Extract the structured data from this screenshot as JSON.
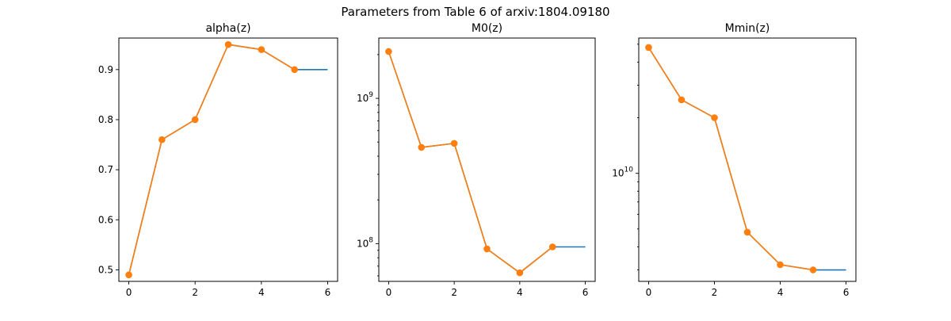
{
  "figure": {
    "title": "Parameters from Table 6 of arxiv:1804.09180"
  },
  "colors": {
    "line_series": "#1f77b4",
    "marker_series": "#ff7f0e"
  },
  "chart_data": [
    {
      "type": "line",
      "title": "alpha(z)",
      "xlabel": "",
      "ylabel": "",
      "yscale": "linear",
      "xlim": [
        -0.3,
        6.3
      ],
      "ylim": [
        0.477,
        0.963
      ],
      "xticks": [
        0,
        2,
        4,
        6
      ],
      "xtick_labels": [
        "0",
        "2",
        "4",
        "6"
      ],
      "yticks": [
        0.5,
        0.6,
        0.7,
        0.8,
        0.9
      ],
      "ytick_labels": [
        "0.5",
        "0.6",
        "0.7",
        "0.8",
        "0.9"
      ],
      "minor_yticks": [],
      "grid": false,
      "series": [
        {
          "x": [
            0,
            1,
            2,
            3,
            4,
            5,
            6
          ],
          "values": [
            0.49,
            0.76,
            0.8,
            0.95,
            0.94,
            0.9,
            0.9
          ],
          "color": "#1f77b4",
          "marker": false
        },
        {
          "x": [
            0,
            1,
            2,
            3,
            4,
            5
          ],
          "values": [
            0.49,
            0.76,
            0.8,
            0.95,
            0.94,
            0.9
          ],
          "color": "#ff7f0e",
          "marker": true
        }
      ]
    },
    {
      "type": "line",
      "title": "M0(z)",
      "xlabel": "",
      "ylabel": "",
      "yscale": "log",
      "xlim": [
        -0.3,
        6.3
      ],
      "ylim": [
        55000000.0,
        2600000000.0
      ],
      "xticks": [
        0,
        2,
        4,
        6
      ],
      "xtick_labels": [
        "0",
        "2",
        "4",
        "6"
      ],
      "yticks": [
        100000000.0,
        1000000000.0
      ],
      "ytick_labels": [
        "10^8",
        "10^9"
      ],
      "minor_yticks": [
        60000000.0,
        70000000.0,
        80000000.0,
        90000000.0,
        200000000.0,
        300000000.0,
        400000000.0,
        500000000.0,
        600000000.0,
        700000000.0,
        800000000.0,
        900000000.0,
        2000000000.0
      ],
      "grid": false,
      "series": [
        {
          "x": [
            0,
            1,
            2,
            3,
            4,
            5,
            6
          ],
          "values": [
            2100000000.0,
            460000000.0,
            490000000.0,
            92000000.0,
            63000000.0,
            95000000.0,
            95000000.0
          ],
          "color": "#1f77b4",
          "marker": false
        },
        {
          "x": [
            0,
            1,
            2,
            3,
            4,
            5
          ],
          "values": [
            2100000000.0,
            460000000.0,
            490000000.0,
            92000000.0,
            63000000.0,
            95000000.0
          ],
          "color": "#ff7f0e",
          "marker": true
        }
      ]
    },
    {
      "type": "line",
      "title": "Mmin(z)",
      "xlabel": "",
      "ylabel": "",
      "yscale": "log",
      "xlim": [
        -0.3,
        6.3
      ],
      "ylim": [
        2600000000.0,
        54000000000.0
      ],
      "xticks": [
        0,
        2,
        4,
        6
      ],
      "xtick_labels": [
        "0",
        "2",
        "4",
        "6"
      ],
      "yticks": [
        10000000000.0
      ],
      "ytick_labels": [
        "10^10"
      ],
      "minor_yticks": [
        3000000000.0,
        4000000000.0,
        5000000000.0,
        6000000000.0,
        7000000000.0,
        8000000000.0,
        9000000000.0,
        20000000000.0,
        30000000000.0,
        40000000000.0,
        50000000000.0
      ],
      "grid": false,
      "series": [
        {
          "x": [
            0,
            1,
            2,
            3,
            4,
            5,
            6
          ],
          "values": [
            48000000000.0,
            25000000000.0,
            20000000000.0,
            4800000000.0,
            3200000000.0,
            3000000000.0,
            3000000000.0
          ],
          "color": "#1f77b4",
          "marker": false
        },
        {
          "x": [
            0,
            1,
            2,
            3,
            4,
            5
          ],
          "values": [
            48000000000.0,
            25000000000.0,
            20000000000.0,
            4800000000.0,
            3200000000.0,
            3000000000.0
          ],
          "color": "#ff7f0e",
          "marker": true
        }
      ]
    }
  ]
}
